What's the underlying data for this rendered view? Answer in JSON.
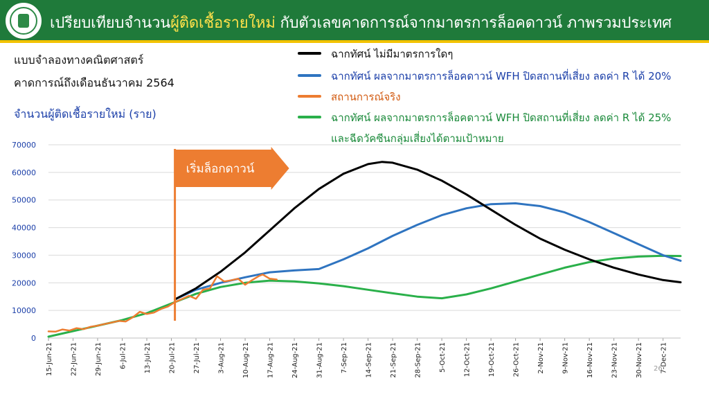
{
  "header": {
    "title_before": "เปรียบเทียบจำนวน",
    "title_highlight": "ผู้ติดเชื้อรายใหม่",
    "title_after": " กับตัวเลขคาดการณ์จากมาตรการล็อคดาวน์ ภาพรวมประเทศ",
    "logo_name": "ministry-of-public-health-seal"
  },
  "subtitle_line1": "แบบจำลองทางคณิตศาสตร์",
  "subtitle_line2": "คาดการณ์ถึงเดือนธันวาคม 2564",
  "page_number": "26",
  "colors": {
    "header_bg": "#1f7a3a",
    "header_strip": "#f2c200",
    "highlight": "#ffe14a"
  },
  "chart_data": {
    "type": "line",
    "ylabel": "จำนวนผู้ติดเชื้อรายใหม่ (ราย)",
    "xlabel": "",
    "ylim": [
      0,
      70000
    ],
    "yticks": [
      0,
      10000,
      20000,
      30000,
      40000,
      50000,
      60000,
      70000
    ],
    "xlim": [
      "15-Jun-21",
      "12-Dec-21"
    ],
    "xticks": [
      "15-Jun-21",
      "22-Jun-21",
      "29-Jun-21",
      "6-Jul-21",
      "13-Jul-21",
      "20-Jul-21",
      "27-Jul-21",
      "3-Aug-21",
      "10-Aug-21",
      "17-Aug-21",
      "24-Aug-21",
      "31-Aug-21",
      "7-Sep-21",
      "14-Sep-21",
      "21-Sep-21",
      "28-Sep-21",
      "5-Oct-21",
      "12-Oct-21",
      "19-Oct-21",
      "26-Oct-21",
      "2-Nov-21",
      "9-Nov-21",
      "16-Nov-21",
      "23-Nov-21",
      "30-Nov-21",
      "7-Dec-21"
    ],
    "grid": true,
    "legend_position": "top-right",
    "annotation": {
      "label": "เริ่มล็อกดาวน์",
      "x": "21-Jul-21"
    },
    "series": [
      {
        "name": "ฉากทัศน์ ไม่มีมาตรการใดๆ",
        "color": "#000000",
        "points": [
          [
            "21-Jul-21",
            14000
          ],
          [
            "27-Jul-21",
            18000
          ],
          [
            "3-Aug-21",
            24000
          ],
          [
            "10-Aug-21",
            31000
          ],
          [
            "17-Aug-21",
            39000
          ],
          [
            "24-Aug-21",
            47000
          ],
          [
            "31-Aug-21",
            54000
          ],
          [
            "7-Sep-21",
            59500
          ],
          [
            "14-Sep-21",
            63000
          ],
          [
            "18-Sep-21",
            63800
          ],
          [
            "21-Sep-21",
            63500
          ],
          [
            "28-Sep-21",
            61000
          ],
          [
            "5-Oct-21",
            57000
          ],
          [
            "12-Oct-21",
            52000
          ],
          [
            "19-Oct-21",
            46500
          ],
          [
            "26-Oct-21",
            41000
          ],
          [
            "2-Nov-21",
            36000
          ],
          [
            "9-Nov-21",
            32000
          ],
          [
            "16-Nov-21",
            28500
          ],
          [
            "23-Nov-21",
            25500
          ],
          [
            "30-Nov-21",
            23000
          ],
          [
            "7-Dec-21",
            21000
          ],
          [
            "12-Dec-21",
            20200
          ]
        ]
      },
      {
        "name": "ฉากทัศน์ ผลจากมาตรการล็อคดาวน์ WFH ปิดสถานที่เสี่ยง ลดค่า R ได้ 20%",
        "color": "#2f74c0",
        "points": [
          [
            "21-Jul-21",
            14000
          ],
          [
            "27-Jul-21",
            17500
          ],
          [
            "3-Aug-21",
            20000
          ],
          [
            "10-Aug-21",
            22000
          ],
          [
            "17-Aug-21",
            23800
          ],
          [
            "24-Aug-21",
            24500
          ],
          [
            "31-Aug-21",
            25000
          ],
          [
            "7-Sep-21",
            28500
          ],
          [
            "14-Sep-21",
            32500
          ],
          [
            "21-Sep-21",
            37000
          ],
          [
            "28-Sep-21",
            41000
          ],
          [
            "5-Oct-21",
            44500
          ],
          [
            "12-Oct-21",
            47000
          ],
          [
            "19-Oct-21",
            48500
          ],
          [
            "26-Oct-21",
            48800
          ],
          [
            "2-Nov-21",
            47800
          ],
          [
            "9-Nov-21",
            45500
          ],
          [
            "16-Nov-21",
            42000
          ],
          [
            "23-Nov-21",
            38000
          ],
          [
            "30-Nov-21",
            34000
          ],
          [
            "7-Dec-21",
            30000
          ],
          [
            "12-Dec-21",
            28000
          ]
        ]
      },
      {
        "name": "สถานการณ์จริง",
        "color": "#ed7d31",
        "points": [
          [
            "15-Jun-21",
            2400
          ],
          [
            "17-Jun-21",
            2300
          ],
          [
            "19-Jun-21",
            3100
          ],
          [
            "21-Jun-21",
            2700
          ],
          [
            "23-Jun-21",
            3600
          ],
          [
            "25-Jun-21",
            3200
          ],
          [
            "27-Jun-21",
            4100
          ],
          [
            "29-Jun-21",
            4500
          ],
          [
            "1-Jul-21",
            5100
          ],
          [
            "3-Jul-21",
            5600
          ],
          [
            "5-Jul-21",
            6200
          ],
          [
            "7-Jul-21",
            6000
          ],
          [
            "9-Jul-21",
            7500
          ],
          [
            "11-Jul-21",
            9500
          ],
          [
            "13-Jul-21",
            8700
          ],
          [
            "15-Jul-21",
            9200
          ],
          [
            "17-Jul-21",
            10500
          ],
          [
            "19-Jul-21",
            11400
          ],
          [
            "21-Jul-21",
            13000
          ],
          [
            "23-Jul-21",
            14100
          ],
          [
            "25-Jul-21",
            15300
          ],
          [
            "27-Jul-21",
            14200
          ],
          [
            "29-Jul-21",
            17500
          ],
          [
            "31-Jul-21",
            18000
          ],
          [
            "2-Aug-21",
            22400
          ],
          [
            "4-Aug-21",
            20500
          ],
          [
            "6-Aug-21",
            20900
          ],
          [
            "8-Aug-21",
            21500
          ],
          [
            "10-Aug-21",
            19300
          ],
          [
            "12-Aug-21",
            21000
          ],
          [
            "14-Aug-21",
            22500
          ],
          [
            "15-Aug-21",
            23000
          ],
          [
            "17-Aug-21",
            21500
          ],
          [
            "19-Aug-21",
            21200
          ]
        ]
      },
      {
        "name": "ฉากทัศน์ ผลจากมาตรการล็อคดาวน์ WFH ปิดสถานที่เสี่ยง ลดค่า R ได้ 25%",
        "name_line2": "และฉีดวัคซีนกลุ่มเสี่ยงได้ตามเป้าหมาย",
        "color": "#2ab04a",
        "points": [
          [
            "15-Jun-21",
            500
          ],
          [
            "22-Jun-21",
            2500
          ],
          [
            "29-Jun-21",
            4500
          ],
          [
            "6-Jul-21",
            6500
          ],
          [
            "13-Jul-21",
            9000
          ],
          [
            "20-Jul-21",
            12500
          ],
          [
            "27-Jul-21",
            16000
          ],
          [
            "3-Aug-21",
            18500
          ],
          [
            "10-Aug-21",
            20000
          ],
          [
            "17-Aug-21",
            20800
          ],
          [
            "24-Aug-21",
            20500
          ],
          [
            "31-Aug-21",
            19800
          ],
          [
            "7-Sep-21",
            18800
          ],
          [
            "14-Sep-21",
            17500
          ],
          [
            "21-Sep-21",
            16200
          ],
          [
            "28-Sep-21",
            15000
          ],
          [
            "5-Oct-21",
            14400
          ],
          [
            "12-Oct-21",
            15800
          ],
          [
            "19-Oct-21",
            18000
          ],
          [
            "26-Oct-21",
            20500
          ],
          [
            "2-Nov-21",
            23000
          ],
          [
            "9-Nov-21",
            25500
          ],
          [
            "16-Nov-21",
            27500
          ],
          [
            "23-Nov-21",
            28800
          ],
          [
            "30-Nov-21",
            29500
          ],
          [
            "7-Dec-21",
            29800
          ],
          [
            "12-Dec-21",
            29700
          ]
        ]
      }
    ]
  }
}
